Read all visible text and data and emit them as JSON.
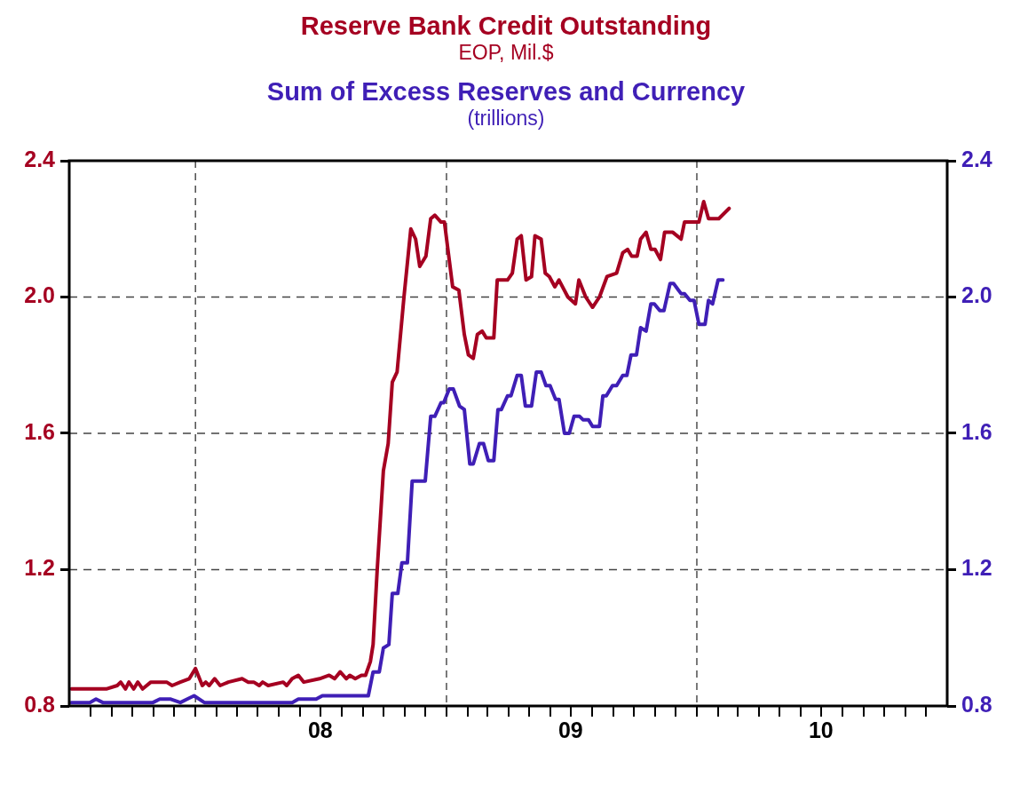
{
  "chart_data": {
    "type": "line",
    "annotations": [
      "EOP, Mil.$",
      "(trillions)"
    ],
    "xlim": [
      "2007-07-01",
      "2011-01-01"
    ],
    "xticks": [
      {
        "value": "2007-08-01",
        "label": null
      },
      {
        "value": "2007-09-01",
        "label": null
      },
      {
        "value": "2007-10-01",
        "label": null
      },
      {
        "value": "2007-11-01",
        "label": null
      },
      {
        "value": "2007-12-01",
        "label": null
      },
      {
        "value": "2008-01-01",
        "label": null
      },
      {
        "value": "2008-02-01",
        "label": null
      },
      {
        "value": "2008-03-01",
        "label": null
      },
      {
        "value": "2008-04-01",
        "label": null
      },
      {
        "value": "2008-05-01",
        "label": null
      },
      {
        "value": "2008-06-01",
        "label": null
      },
      {
        "value": "2008-07-01",
        "label": "08"
      },
      {
        "value": "2008-08-01",
        "label": null
      },
      {
        "value": "2008-09-01",
        "label": null
      },
      {
        "value": "2008-10-01",
        "label": null
      },
      {
        "value": "2008-11-01",
        "label": null
      },
      {
        "value": "2008-12-01",
        "label": null
      },
      {
        "value": "2009-01-01",
        "label": null
      },
      {
        "value": "2009-02-01",
        "label": null
      },
      {
        "value": "2009-03-01",
        "label": null
      },
      {
        "value": "2009-04-01",
        "label": null
      },
      {
        "value": "2009-05-01",
        "label": null
      },
      {
        "value": "2009-06-01",
        "label": null
      },
      {
        "value": "2009-07-01",
        "label": "09"
      },
      {
        "value": "2009-08-01",
        "label": null
      },
      {
        "value": "2009-09-01",
        "label": null
      },
      {
        "value": "2009-10-01",
        "label": null
      },
      {
        "value": "2009-11-01",
        "label": null
      },
      {
        "value": "2009-12-01",
        "label": null
      },
      {
        "value": "2010-01-01",
        "label": null
      },
      {
        "value": "2010-02-01",
        "label": null
      },
      {
        "value": "2010-03-01",
        "label": null
      },
      {
        "value": "2010-04-01",
        "label": null
      },
      {
        "value": "2010-05-01",
        "label": null
      },
      {
        "value": "2010-06-01",
        "label": null
      },
      {
        "value": "2010-07-01",
        "label": "10"
      },
      {
        "value": "2010-08-01",
        "label": null
      },
      {
        "value": "2010-09-01",
        "label": null
      },
      {
        "value": "2010-10-01",
        "label": null
      },
      {
        "value": "2010-11-01",
        "label": null
      },
      {
        "value": "2010-12-01",
        "label": null
      }
    ],
    "ylim": [
      0.8,
      2.4
    ],
    "yticks": [
      0.8,
      1.2,
      1.6,
      {
        "value": 2,
        "label": "2.0"
      },
      2.4
    ],
    "y2lim": [
      0.8,
      2.4
    ],
    "y2ticks": [
      0.8,
      1.2,
      1.6,
      {
        "value": 2,
        "label": "2.0"
      },
      2.4
    ],
    "grid": "y",
    "legend": "top",
    "marker": "none",
    "line_style": "solid",
    "ref_lines": [
      {
        "axis": "x",
        "value": "2008-01-01",
        "color": "#333333",
        "line_style": "dashed"
      },
      {
        "axis": "x",
        "value": "2009-01-01",
        "color": "#333333",
        "line_style": "dashed"
      },
      {
        "axis": "x",
        "value": "2010-01-01",
        "color": "#333333",
        "line_style": "dashed"
      }
    ],
    "series": [
      {
        "name": "Reserve Bank Credit Outstanding",
        "color": "#a50021",
        "axis": "y",
        "x": [
          "2007-07-04",
          "2007-07-15",
          "2007-07-28",
          "2007-08-13",
          "2007-08-24",
          "2007-09-09",
          "2007-09-14",
          "2007-09-21",
          "2007-09-26",
          "2007-10-03",
          "2007-10-09",
          "2007-10-16",
          "2007-10-28",
          "2007-11-20",
          "2007-11-28",
          "2007-12-10",
          "2007-12-23",
          "2008-01-01",
          "2008-01-11",
          "2008-01-16",
          "2008-01-21",
          "2008-01-29",
          "2008-02-06",
          "2008-02-18",
          "2008-03-09",
          "2008-03-18",
          "2008-03-26",
          "2008-04-03",
          "2008-04-08",
          "2008-04-16",
          "2008-05-08",
          "2008-05-13",
          "2008-05-21",
          "2008-05-30",
          "2008-06-07",
          "2008-06-30",
          "2008-07-14",
          "2008-07-22",
          "2008-07-30",
          "2008-08-08",
          "2008-08-13",
          "2008-08-21",
          "2008-08-30",
          "2008-09-05",
          "2008-09-12",
          "2008-09-16",
          "2008-09-22",
          "2008-10-01",
          "2008-10-08",
          "2008-10-14",
          "2008-10-21",
          "2008-10-31",
          "2008-11-10",
          "2008-11-17",
          "2008-11-23",
          "2008-12-02",
          "2008-12-09",
          "2008-12-15",
          "2008-12-24",
          "2008-12-29",
          "2009-01-10",
          "2009-01-19",
          "2009-01-27",
          "2009-02-02",
          "2009-02-09",
          "2009-02-15",
          "2009-02-22",
          "2009-02-28",
          "2009-03-11",
          "2009-03-16",
          "2009-03-31",
          "2009-04-07",
          "2009-04-14",
          "2009-04-20",
          "2009-04-27",
          "2009-05-05",
          "2009-05-10",
          "2009-05-19",
          "2009-05-25",
          "2009-05-31",
          "2009-06-08",
          "2009-06-14",
          "2009-06-27",
          "2009-07-08",
          "2009-07-13",
          "2009-07-23",
          "2009-08-02",
          "2009-08-12",
          "2009-08-23",
          "2009-09-06",
          "2009-09-15",
          "2009-09-22",
          "2009-09-28",
          "2009-10-06",
          "2009-10-11",
          "2009-10-19",
          "2009-10-26",
          "2009-11-01",
          "2009-11-09",
          "2009-11-15",
          "2009-11-27",
          "2009-12-09",
          "2009-12-14",
          "2009-12-22",
          "2010-01-04",
          "2010-01-11",
          "2010-01-18",
          "2010-02-02",
          "2010-02-17"
        ],
        "values": [
          0.85,
          0.85,
          0.85,
          0.85,
          0.85,
          0.86,
          0.87,
          0.85,
          0.87,
          0.85,
          0.87,
          0.85,
          0.87,
          0.87,
          0.86,
          0.87,
          0.88,
          0.91,
          0.86,
          0.87,
          0.86,
          0.88,
          0.86,
          0.87,
          0.88,
          0.87,
          0.87,
          0.86,
          0.87,
          0.86,
          0.87,
          0.86,
          0.88,
          0.89,
          0.87,
          0.88,
          0.89,
          0.88,
          0.9,
          0.88,
          0.89,
          0.88,
          0.89,
          0.89,
          0.93,
          0.98,
          1.2,
          1.49,
          1.57,
          1.75,
          1.78,
          2.0,
          2.2,
          2.17,
          2.09,
          2.12,
          2.23,
          2.24,
          2.22,
          2.22,
          2.03,
          2.02,
          1.89,
          1.83,
          1.82,
          1.89,
          1.9,
          1.88,
          1.88,
          2.05,
          2.05,
          2.07,
          2.17,
          2.18,
          2.05,
          2.06,
          2.18,
          2.17,
          2.07,
          2.06,
          2.03,
          2.05,
          2.0,
          1.98,
          2.05,
          2.0,
          1.97,
          2.0,
          2.06,
          2.07,
          2.13,
          2.14,
          2.12,
          2.12,
          2.17,
          2.19,
          2.14,
          2.14,
          2.11,
          2.19,
          2.19,
          2.17,
          2.22,
          2.22,
          2.22,
          2.28,
          2.23,
          2.23,
          2.26
        ]
      },
      {
        "name": "Sum of Excess Reserves and Currency",
        "color": "#3f1fb6",
        "axis": "y2",
        "x": [
          "2007-07-04",
          "2007-07-31",
          "2007-08-09",
          "2007-08-19",
          "2007-09-06",
          "2007-09-14",
          "2007-10-01",
          "2007-10-16",
          "2007-10-31",
          "2007-11-10",
          "2007-11-26",
          "2007-12-10",
          "2007-12-20",
          "2007-12-30",
          "2008-01-14",
          "2008-02-06",
          "2008-02-18",
          "2008-04-06",
          "2008-04-16",
          "2008-05-03",
          "2008-05-21",
          "2008-05-30",
          "2008-06-25",
          "2008-07-04",
          "2008-08-23",
          "2008-08-30",
          "2008-09-09",
          "2008-09-16",
          "2008-09-25",
          "2008-10-01",
          "2008-10-09",
          "2008-10-14",
          "2008-10-22",
          "2008-10-28",
          "2008-11-05",
          "2008-11-12",
          "2008-12-01",
          "2008-12-09",
          "2008-12-15",
          "2008-12-24",
          "2008-12-28",
          "2009-01-05",
          "2009-01-11",
          "2009-01-20",
          "2009-01-27",
          "2009-02-04",
          "2009-02-09",
          "2009-02-18",
          "2009-02-24",
          "2009-03-03",
          "2009-03-11",
          "2009-03-17",
          "2009-03-22",
          "2009-03-31",
          "2009-04-05",
          "2009-04-14",
          "2009-04-20",
          "2009-04-26",
          "2009-05-05",
          "2009-05-12",
          "2009-05-19",
          "2009-05-26",
          "2009-06-01",
          "2009-06-09",
          "2009-06-14",
          "2009-06-22",
          "2009-06-29",
          "2009-07-06",
          "2009-07-14",
          "2009-07-19",
          "2009-07-27",
          "2009-08-02",
          "2009-08-12",
          "2009-08-17",
          "2009-08-22",
          "2009-08-31",
          "2009-09-06",
          "2009-09-15",
          "2009-09-21",
          "2009-09-27",
          "2009-10-05",
          "2009-10-11",
          "2009-10-19",
          "2009-10-26",
          "2009-10-31",
          "2009-11-08",
          "2009-11-14",
          "2009-11-23",
          "2009-11-28",
          "2009-12-09",
          "2009-12-14",
          "2009-12-22",
          "2009-12-28",
          "2010-01-04",
          "2010-01-13",
          "2010-01-18",
          "2010-01-24",
          "2010-02-01",
          "2010-02-08"
        ],
        "values": [
          0.81,
          0.81,
          0.82,
          0.81,
          0.81,
          0.81,
          0.81,
          0.81,
          0.81,
          0.82,
          0.82,
          0.81,
          0.82,
          0.83,
          0.81,
          0.81,
          0.81,
          0.81,
          0.81,
          0.81,
          0.81,
          0.82,
          0.82,
          0.83,
          0.83,
          0.83,
          0.83,
          0.9,
          0.9,
          0.97,
          0.98,
          1.13,
          1.13,
          1.22,
          1.22,
          1.46,
          1.46,
          1.65,
          1.65,
          1.69,
          1.69,
          1.73,
          1.73,
          1.68,
          1.67,
          1.51,
          1.51,
          1.57,
          1.57,
          1.52,
          1.52,
          1.67,
          1.67,
          1.71,
          1.71,
          1.77,
          1.77,
          1.68,
          1.68,
          1.78,
          1.78,
          1.74,
          1.74,
          1.7,
          1.7,
          1.6,
          1.6,
          1.65,
          1.65,
          1.64,
          1.64,
          1.62,
          1.62,
          1.71,
          1.71,
          1.74,
          1.74,
          1.77,
          1.77,
          1.83,
          1.83,
          1.91,
          1.9,
          1.98,
          1.98,
          1.96,
          1.96,
          2.04,
          2.04,
          2.01,
          2.01,
          1.99,
          1.99,
          1.92,
          1.92,
          1.99,
          1.98,
          2.05,
          2.05
        ]
      }
    ]
  }
}
